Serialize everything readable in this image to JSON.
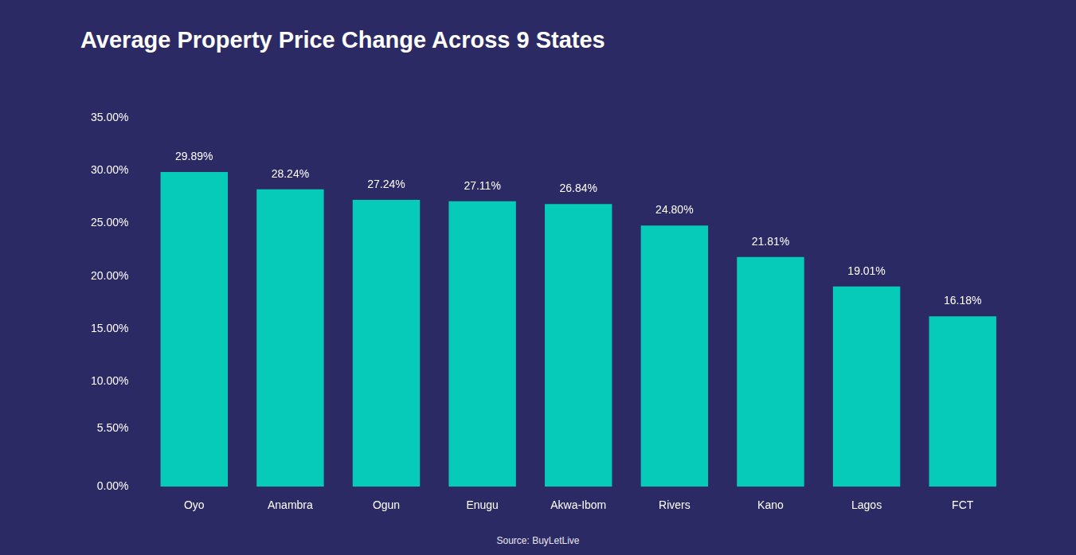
{
  "chart_data": {
    "type": "bar",
    "title": "Average Property Price Change Across 9 States",
    "source": "Source: BuyLetLive",
    "categories": [
      "Oyo",
      "Anambra",
      "Ogun",
      "Enugu",
      "Akwa-Ibom",
      "Rivers",
      "Kano",
      "Lagos",
      "FCT"
    ],
    "values": [
      29.89,
      28.24,
      27.24,
      27.11,
      26.84,
      24.8,
      21.81,
      19.01,
      16.18
    ],
    "value_labels": [
      "29.89%",
      "28.24%",
      "27.24%",
      "27.11%",
      "26.84%",
      "24.80%",
      "21.81%",
      "19.01%",
      "16.18%"
    ],
    "color": "#06cbb9",
    "ylim": [
      0,
      35
    ],
    "yticks": [
      {
        "value": 0,
        "label": "0.00%"
      },
      {
        "value": 5.5,
        "label": "5.50%"
      },
      {
        "value": 10,
        "label": "10.00%"
      },
      {
        "value": 15,
        "label": "15.00%"
      },
      {
        "value": 20,
        "label": "20.00%"
      },
      {
        "value": 25,
        "label": "25.00%"
      },
      {
        "value": 30,
        "label": "30.00%"
      },
      {
        "value": 35,
        "label": "35.00%"
      }
    ],
    "grid": false,
    "data_labels": true
  }
}
